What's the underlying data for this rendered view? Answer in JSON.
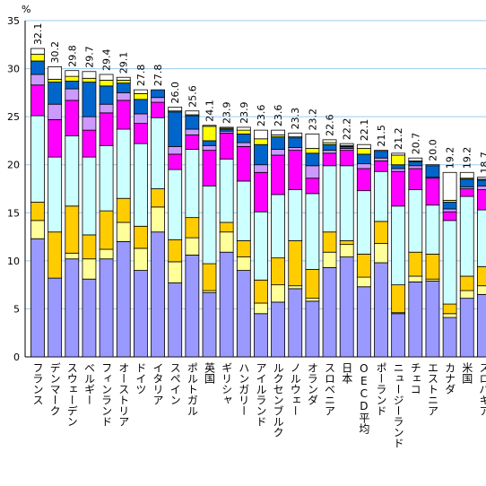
{
  "chart_data": {
    "type": "stacked_bar",
    "y_unit": "%",
    "categories": [
      "フランス",
      "デンマーク",
      "スウェーデン",
      "ベルギー",
      "フィンランド",
      "オーストリア",
      "ドイツ",
      "イタリア",
      "スペイン",
      "ポルトガル",
      "英国",
      "ギリシャ",
      "ハンガリー",
      "アイルランド",
      "ルクセンブルク",
      "ノルウェー",
      "オランダ",
      "スロベニア",
      "日本",
      "OECD平均",
      "ポーランド",
      "ニュージーランド",
      "チェコ",
      "エストニア",
      "カナダ",
      "米国",
      "スロバキア"
    ],
    "series": [
      {
        "color": "#9999ff",
        "values": [
          12.3,
          8.2,
          10.2,
          8.1,
          10.2,
          12.0,
          9.0,
          13.0,
          7.7,
          10.6,
          6.7,
          10.9,
          9.0,
          4.5,
          5.7,
          7.1,
          5.8,
          9.3,
          10.4,
          7.3,
          9.8,
          4.5,
          7.8,
          7.9,
          4.1,
          6.1,
          6.5
        ]
      },
      {
        "color": "#ffff99",
        "values": [
          1.9,
          0,
          0.6,
          2.1,
          1.0,
          2.0,
          2.3,
          2.6,
          2.2,
          1.8,
          0.2,
          2.1,
          1.4,
          1.1,
          1.8,
          0.3,
          0.3,
          1.6,
          1.3,
          1.0,
          2.0,
          0.1,
          0.6,
          0.2,
          0.4,
          0.8,
          0.9
        ]
      },
      {
        "color": "#ffcc00",
        "values": [
          1.9,
          4.8,
          4.9,
          2.5,
          4.0,
          2.5,
          2.3,
          1.9,
          2.3,
          2.1,
          2.8,
          1.0,
          1.7,
          2.4,
          2.8,
          4.7,
          3.0,
          2.1,
          0.4,
          2.4,
          2.3,
          2.9,
          2.5,
          2.6,
          1.0,
          1.5,
          2.0
        ]
      },
      {
        "color": "#ccffff",
        "values": [
          9.0,
          7.8,
          7.3,
          8.1,
          6.8,
          7.2,
          8.6,
          7.4,
          7.3,
          7.1,
          8.1,
          6.6,
          6.2,
          7.1,
          6.6,
          5.3,
          7.9,
          6.9,
          7.8,
          6.6,
          5.2,
          8.2,
          6.5,
          5.1,
          8.7,
          8.3,
          5.9
        ]
      },
      {
        "color": "#ff00ff",
        "values": [
          3.2,
          3.9,
          3.7,
          2.8,
          3.4,
          3.0,
          2.1,
          1.6,
          1.6,
          1.5,
          3.7,
          2.7,
          3.6,
          4.1,
          4.1,
          4.1,
          1.6,
          1.3,
          1.6,
          2.3,
          1.1,
          3.6,
          2.2,
          2.8,
          0.9,
          0.8,
          2.1
        ]
      },
      {
        "color": "#cc99ff",
        "values": [
          1.1,
          1.6,
          1.2,
          1.4,
          0.9,
          0.8,
          1.0,
          0.5,
          0.8,
          0.6,
          0.5,
          0.2,
          0.4,
          0.8,
          0.6,
          0.3,
          1.3,
          0.3,
          0.2,
          0.5,
          0.3,
          0.3,
          0.3,
          0.1,
          0.3,
          0.2,
          0.4
        ]
      },
      {
        "color": "#0066cc",
        "values": [
          1.4,
          2.3,
          0.8,
          3.6,
          1.9,
          1.0,
          1.5,
          0.8,
          3.6,
          1.4,
          0.5,
          0.2,
          0.9,
          2.1,
          1.3,
          1.0,
          1.3,
          0.6,
          0.2,
          1.0,
          0.7,
          0.4,
          0.4,
          1.2,
          0.7,
          0.8,
          0.6
        ]
      },
      {
        "color": "#ffff00",
        "values": [
          0.7,
          0.3,
          0.5,
          0.4,
          0.6,
          0.3,
          0.6,
          0,
          0.1,
          0.1,
          1.5,
          0.1,
          0.4,
          0.6,
          0.2,
          0.1,
          0.5,
          0.2,
          0.1,
          0.6,
          0,
          1.0,
          0.1,
          0,
          0.2,
          0.1,
          0.1
        ]
      },
      {
        "color": "#ffffff",
        "values": [
          0.6,
          1.3,
          0.6,
          0.7,
          0.6,
          0.3,
          0.4,
          0,
          0.4,
          0.4,
          0.1,
          0.1,
          0.3,
          0.9,
          0.5,
          0.4,
          1.5,
          0.3,
          0.2,
          0.4,
          0.1,
          0.2,
          0.3,
          0.1,
          2.9,
          0.6,
          0.2
        ]
      }
    ],
    "totals": [
      32.1,
      30.2,
      29.8,
      29.7,
      29.4,
      29.1,
      27.8,
      27.8,
      26.0,
      25.6,
      24.1,
      23.9,
      23.9,
      23.6,
      23.6,
      23.3,
      23.2,
      22.6,
      22.2,
      22.1,
      21.5,
      21.2,
      20.7,
      20.0,
      19.2,
      19.2,
      18.7
    ],
    "value_labels": [
      "32.1",
      "30.2",
      "29.8",
      "29.7",
      "29.4",
      "29.1",
      "27.8",
      "27.8",
      "26.0",
      "25.6",
      "24.1",
      "23.9",
      "23.9",
      "23.6",
      "23.6",
      "23.3",
      "23.2",
      "22.6",
      "22.2",
      "22.1",
      "21.5",
      "21.2",
      "20.7",
      "20.0",
      "19.2",
      "19.2",
      "18.7"
    ],
    "ylim": [
      0,
      35
    ],
    "yticks": [
      0,
      5,
      10,
      15,
      20,
      25,
      30,
      35
    ],
    "grid": true,
    "grid_color": "#99ccee"
  }
}
